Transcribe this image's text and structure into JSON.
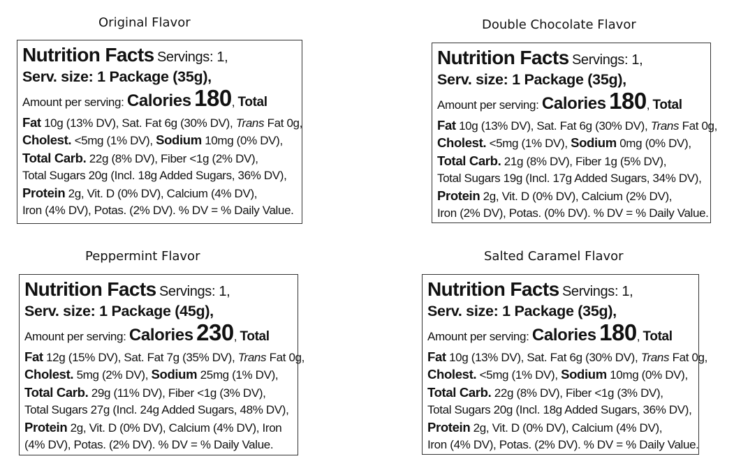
{
  "labels": [
    {
      "flavor": "Original Flavor",
      "heading": "Nutrition Facts",
      "servings": "Servings: 1,",
      "serving_size": "Serv. size: 1 Package (35g),",
      "amount_per_serving": "Amount per serving:",
      "calories_label": "Calories",
      "calories": "180",
      "total_comma": ",",
      "total_label": "Total",
      "fat_label": "Fat",
      "fat_text": "10g (13% DV),",
      "satfat_text": "Sat. Fat 6g (30% DV),",
      "trans_label": "Trans",
      "trans_text": "Fat 0g,",
      "cholest_label": "Cholest.",
      "cholest_text": "<5mg (1% DV),",
      "sodium_label": "Sodium",
      "sodium_text": "10mg (0% DV),",
      "carb_label": "Total Carb.",
      "carb_text": "22g (8% DV), Fiber <1g (2% DV),",
      "sugars_text": "Total Sugars 20g (Incl. 18g Added Sugars, 36% DV),",
      "protein_label": "Protein",
      "protein_text": "2g, Vit. D (0% DV), Calcium (4% DV),",
      "last_line": "Iron (4% DV), Potas. (2% DV). % DV = % Daily Value."
    },
    {
      "flavor": "Double Chocolate Flavor",
      "heading": "Nutrition Facts",
      "servings": "Servings: 1,",
      "serving_size": "Serv. size: 1 Package (35g),",
      "amount_per_serving": "Amount per serving:",
      "calories_label": "Calories",
      "calories": "180",
      "total_comma": ",",
      "total_label": "Total",
      "fat_label": "Fat",
      "fat_text": "10g (13% DV),",
      "satfat_text": "Sat. Fat 6g (30% DV),",
      "trans_label": "Trans",
      "trans_text": "Fat 0g,",
      "cholest_label": "Cholest.",
      "cholest_text": "<5mg (1% DV),",
      "sodium_label": "Sodium",
      "sodium_text": "0mg (0% DV),",
      "carb_label": "Total Carb.",
      "carb_text": "21g (8% DV), Fiber 1g (5% DV),",
      "sugars_text": "Total Sugars 19g (Incl. 17g Added Sugars, 34% DV),",
      "protein_label": "Protein",
      "protein_text": "2g, Vit. D (0% DV), Calcium (2% DV),",
      "last_line": "Iron (2% DV), Potas. (0% DV). % DV = % Daily Value."
    },
    {
      "flavor": "Peppermint Flavor",
      "heading": "Nutrition Facts",
      "servings": "Servings: 1,",
      "serving_size": "Serv. size: 1 Package (45g),",
      "amount_per_serving": "Amount per serving:",
      "calories_label": "Calories",
      "calories": "230",
      "total_comma": ",",
      "total_label": "Total",
      "fat_label": "Fat",
      "fat_text": "12g (15% DV),",
      "satfat_text": "Sat. Fat 7g (35% DV),",
      "trans_label": "Trans",
      "trans_text": "Fat 0g,",
      "cholest_label": "Cholest.",
      "cholest_text": "5mg (2% DV),",
      "sodium_label": "Sodium",
      "sodium_text": "25mg (1% DV),",
      "carb_label": "Total Carb.",
      "carb_text": "29g (11% DV), Fiber <1g (3% DV),",
      "sugars_text": "Total Sugars 27g (Incl. 24g Added Sugars, 48% DV),",
      "protein_label": "Protein",
      "protein_text": "2g, Vit. D (0% DV), Calcium (4% DV), Iron",
      "last_line": "(4% DV), Potas. (2% DV). % DV = % Daily Value."
    },
    {
      "flavor": "Salted Caramel Flavor",
      "heading": "Nutrition Facts",
      "servings": "Servings: 1,",
      "serving_size": "Serv. size: 1 Package (35g),",
      "amount_per_serving": "Amount per serving:",
      "calories_label": "Calories",
      "calories": "180",
      "total_comma": ",",
      "total_label": "Total",
      "fat_label": "Fat",
      "fat_text": "10g (13% DV),",
      "satfat_text": "Sat. Fat 6g (30% DV),",
      "trans_label": "Trans",
      "trans_text": "Fat 0g,",
      "cholest_label": "Cholest.",
      "cholest_text": "<5mg (1% DV),",
      "sodium_label": "Sodium",
      "sodium_text": "10mg (0% DV),",
      "carb_label": "Total Carb.",
      "carb_text": "22g (8% DV), Fiber <1g (3% DV),",
      "sugars_text": "Total Sugars 20g (Incl. 18g Added Sugars, 36% DV),",
      "protein_label": "Protein",
      "protein_text": "2g, Vit. D (0% DV), Calcium (4% DV),",
      "last_line": "Iron (4% DV), Potas. (2% DV). % DV = % Daily Value."
    }
  ]
}
